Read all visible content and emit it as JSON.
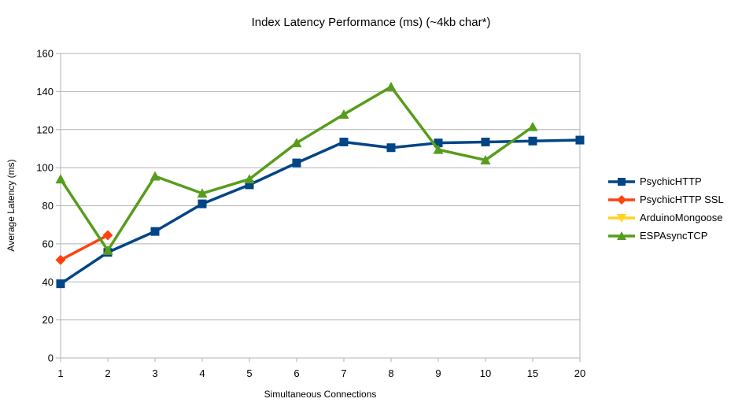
{
  "chart_data": {
    "type": "line",
    "title": "Index Latency Performance (ms) (~4kb char*)",
    "xlabel": "Simultaneous Connections",
    "ylabel": "Average Latency (ms)",
    "categories": [
      "1",
      "2",
      "3",
      "4",
      "5",
      "6",
      "7",
      "8",
      "9",
      "10",
      "15",
      "20"
    ],
    "ylim": [
      0,
      160
    ],
    "ytick_step": 20,
    "ytick_labels": [
      "160",
      "140",
      "120",
      "100",
      "80",
      "60",
      "40",
      "20",
      "0"
    ],
    "grid": "horizontal",
    "legend_position": "right",
    "colors": {
      "grid": "#b3b3b3",
      "axis": "#b3b3b3",
      "text": "#000000",
      "background": "#ffffff"
    },
    "series": [
      {
        "name": "PsychicHTTP",
        "color": "#004586",
        "marker": "square",
        "values": [
          39,
          55.5,
          66.5,
          81,
          91,
          102.5,
          113.5,
          110.5,
          113,
          113.5,
          114,
          114.5
        ]
      },
      {
        "name": "PsychicHTTP SSL",
        "color": "#ff420e",
        "marker": "diamond",
        "values": [
          51.5,
          64.5,
          null,
          null,
          null,
          null,
          null,
          null,
          null,
          null,
          null,
          null
        ]
      },
      {
        "name": "ArduinoMongoose",
        "color": "#ffd320",
        "marker": "triangle-down",
        "values": [
          null,
          null,
          null,
          null,
          null,
          null,
          null,
          null,
          null,
          null,
          null,
          null
        ]
      },
      {
        "name": "ESPAsyncTCP",
        "color": "#579d1c",
        "marker": "triangle-up",
        "values": [
          94,
          56.5,
          95.5,
          86.5,
          94,
          113,
          128,
          142.5,
          109.5,
          104,
          121.5,
          null
        ]
      }
    ]
  }
}
